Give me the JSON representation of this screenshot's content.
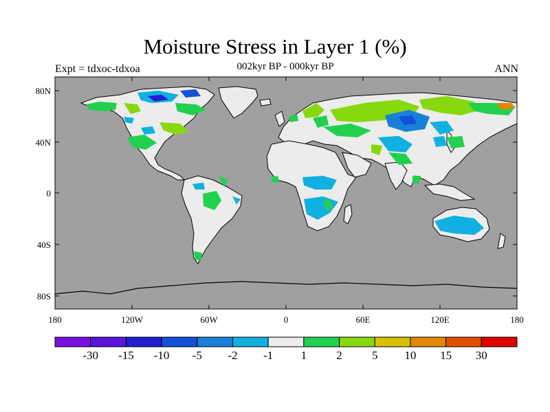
{
  "title": "Moisture Stress in Layer 1 (%)",
  "subtitle": "002kyr BP - 000kyr BP",
  "left_string": "Expt = tdxoc-tdxoa",
  "right_string": "ANN",
  "colors": {
    "ocean": "#a0a0a0",
    "coast": "#000000",
    "land_neutral": "#ececec"
  },
  "map": {
    "lon_range": [
      -180,
      180
    ],
    "lat_range": [
      -90,
      90
    ],
    "y_ticks": [
      "80N",
      "40N",
      "0",
      "40S",
      "80S"
    ],
    "x_ticks": [
      "180",
      "120W",
      "60W",
      "0",
      "60E",
      "120E",
      "180"
    ]
  },
  "colorbar": {
    "colors": [
      "#7a10e0",
      "#5a14d8",
      "#2020d0",
      "#1450d8",
      "#1880d8",
      "#10b0e0",
      "#ececec",
      "#22d050",
      "#88d810",
      "#d8c000",
      "#e08800",
      "#e05000",
      "#e00000"
    ],
    "labels": [
      "-30",
      "-15",
      "-10",
      "-5",
      "-2",
      "-1",
      "1",
      "2",
      "5",
      "10",
      "15",
      "30"
    ]
  }
}
